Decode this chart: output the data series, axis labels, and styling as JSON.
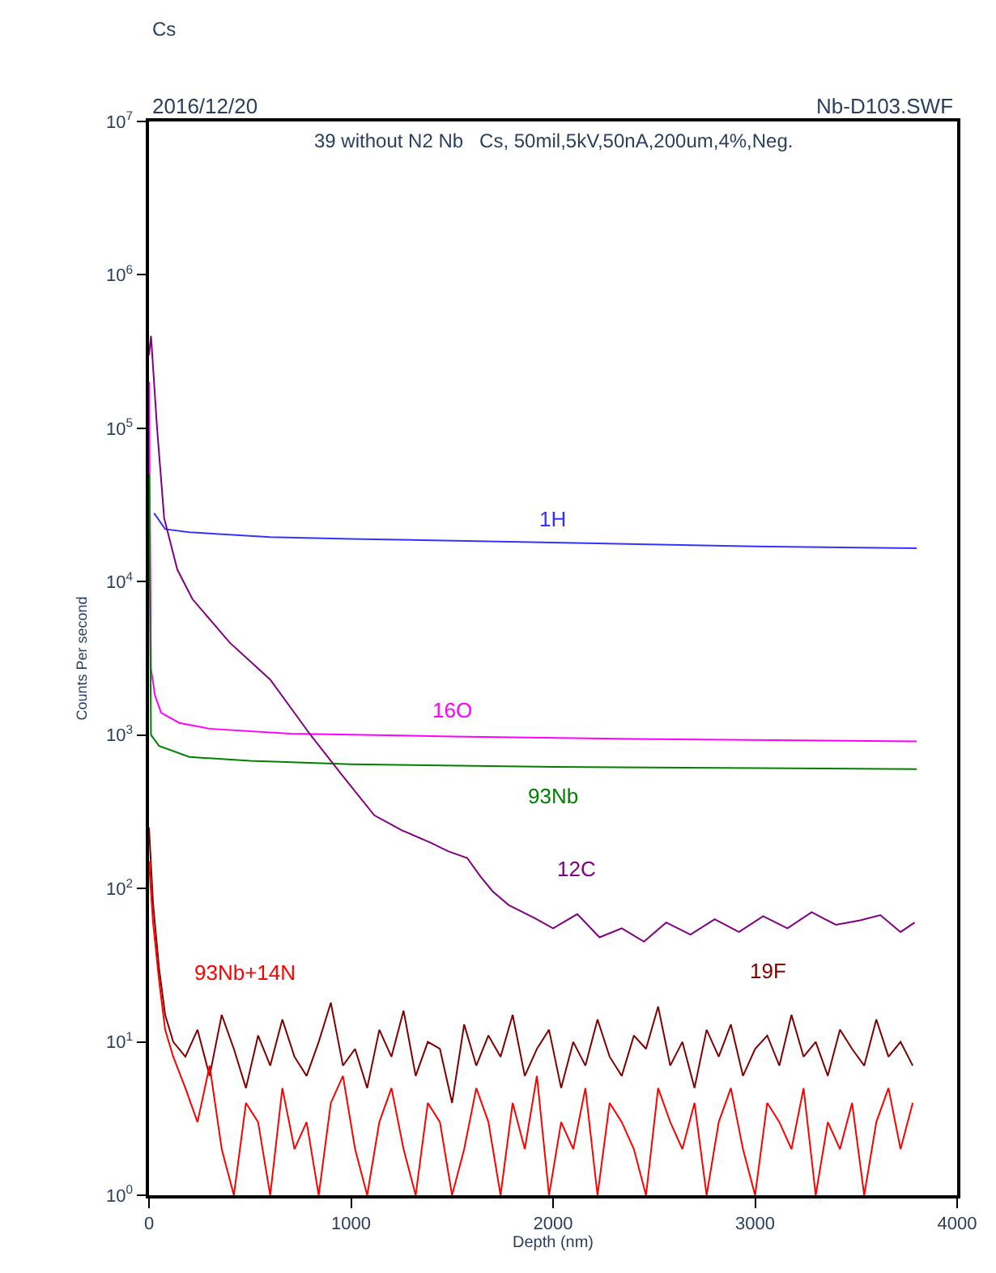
{
  "chart_data": {
    "type": "line",
    "title": "39 without N2 Nb   Cs, 50mil,5kV,50nA,200um,4%,Neg.",
    "xlabel": "Depth (nm)",
    "ylabel": "Counts Per second",
    "log": "y",
    "legend": false,
    "marker": "none",
    "line_style": "solid",
    "xlim": [
      0,
      4000
    ],
    "xticks": [
      0,
      1000,
      2000,
      3000,
      4000
    ],
    "ylim": [
      1,
      10000000
    ],
    "yticks": [
      {
        "value": 1,
        "label": "10$^{0}$"
      },
      {
        "value": 10,
        "label": "10$^{1}$"
      },
      {
        "value": 100,
        "label": "10$^{2}$"
      },
      {
        "value": 1000,
        "label": "10$^{3}$"
      },
      {
        "value": 10000,
        "label": "10$^{4}$"
      },
      {
        "value": 100000,
        "label": "10$^{5}$"
      },
      {
        "value": 1000000,
        "label": "10$^{6}$"
      },
      {
        "value": 10000000,
        "label": "10$^{7}$"
      }
    ],
    "x": [
      0,
      20,
      50,
      80,
      120,
      180,
      240,
      300,
      360,
      420,
      480,
      540,
      600,
      660,
      720,
      780,
      840,
      900,
      960,
      1020,
      1080,
      1140,
      1200,
      1260,
      1320,
      1380,
      1440,
      1500,
      1560,
      1620,
      1680,
      1740,
      1800,
      1860,
      1920,
      1980,
      2040,
      2100,
      2160,
      2220,
      2280,
      2340,
      2400,
      2460,
      2520,
      2580,
      2640,
      2700,
      2760,
      2820,
      2880,
      2940,
      3000,
      3060,
      3120,
      3180,
      3240,
      3300,
      3360,
      3420,
      3480,
      3540,
      3600,
      3660,
      3720,
      3780
    ],
    "series": [
      {
        "name": "1H",
        "color": "#3333ff",
        "x": [
          25,
          80,
          200,
          600,
          1000,
          2000,
          3000,
          3800
        ],
        "values": [
          28000,
          22000,
          21000,
          19500,
          19000,
          18000,
          17000,
          16500
        ]
      },
      {
        "name": "16O",
        "color": "#ff00ff",
        "x": [
          0,
          10,
          30,
          60,
          150,
          300,
          700,
          1500,
          2500,
          3800
        ],
        "values": [
          200000,
          2700,
          1800,
          1400,
          1200,
          1100,
          1020,
          980,
          940,
          910
        ]
      },
      {
        "name": "93Nb",
        "color": "#008000",
        "x": [
          0,
          10,
          50,
          200,
          500,
          1000,
          2000,
          3000,
          3800
        ],
        "values": [
          50000,
          1000,
          850,
          720,
          680,
          645,
          620,
          610,
          600
        ]
      },
      {
        "name": "12C",
        "color": "#800080",
        "x": [
          0,
          10,
          40,
          75,
          140,
          215,
          400,
          600,
          800,
          950,
          1115,
          1250,
          1390,
          1480,
          1575,
          1640,
          1700,
          1780,
          1910,
          2000,
          2120,
          2230,
          2340,
          2450,
          2560,
          2680,
          2800,
          2920,
          3040,
          3160,
          3280,
          3400,
          3520,
          3620,
          3720,
          3790
        ],
        "values": [
          300000,
          400000,
          100000,
          26000,
          12000,
          7700,
          4000,
          2300,
          1000,
          560,
          300,
          240,
          200,
          175,
          158,
          120,
          96,
          78,
          64,
          55,
          68,
          48,
          55,
          45,
          60,
          50,
          63,
          52,
          66,
          55,
          70,
          58,
          62,
          67,
          52,
          60
        ]
      },
      {
        "name": "19F",
        "color": "#800000",
        "values": [
          250,
          80,
          30,
          15,
          10,
          8,
          12,
          6,
          15,
          9,
          5,
          11,
          7,
          14,
          8,
          6,
          10,
          18,
          7,
          9,
          5,
          12,
          8,
          16,
          6,
          10,
          9,
          4,
          13,
          7,
          11,
          8,
          15,
          6,
          9,
          12,
          5,
          10,
          7,
          14,
          8,
          6,
          11,
          9,
          17,
          7,
          10,
          5,
          12,
          8,
          13,
          6,
          9,
          11,
          7,
          15,
          8,
          10,
          6,
          12,
          9,
          7,
          14,
          8,
          10,
          7
        ]
      },
      {
        "name": "93Nb+14N",
        "color": "#ff0000",
        "values": [
          150,
          60,
          25,
          12,
          8,
          5,
          3,
          7,
          2,
          1,
          4,
          3,
          1,
          5,
          2,
          3,
          1,
          4,
          6,
          2,
          1,
          3,
          5,
          2,
          1,
          4,
          3,
          1,
          2,
          5,
          3,
          1,
          4,
          2,
          6,
          1,
          3,
          2,
          5,
          1,
          4,
          3,
          2,
          1,
          5,
          3,
          2,
          4,
          1,
          3,
          5,
          2,
          1,
          4,
          3,
          2,
          5,
          1,
          3,
          2,
          4,
          1,
          3,
          5,
          2,
          4
        ]
      }
    ],
    "annotations": [
      "2016/12/20",
      "Nb-D103.SWF",
      "Cs"
    ]
  }
}
